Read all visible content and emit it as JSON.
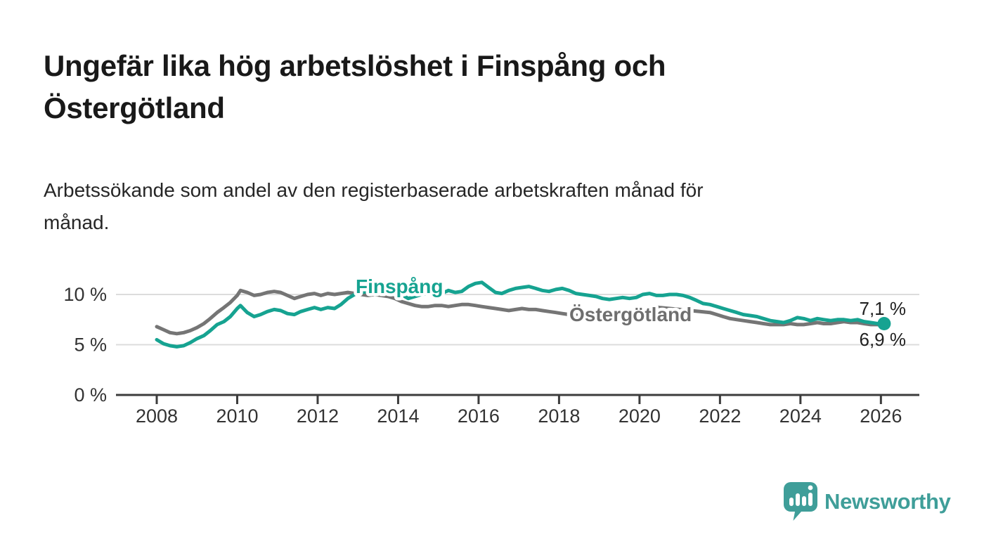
{
  "header": {
    "title": "Ungefär lika hög arbetslöshet i Finspång och Östergötland",
    "title_lines": [
      "Ungefär lika hög arbetslöshet i Finspång och",
      "Östergötland"
    ],
    "subtitle": "Arbetssökande som andel av den registerbaserade arbetskraften månad för månad.",
    "subtitle_lines": [
      "Arbetssökande som andel av den registerbaserade arbetskraften månad för",
      "månad."
    ]
  },
  "footer": {
    "brand": "Newsworthy",
    "brand_color": "#3f9e99"
  },
  "colors": {
    "finspang_line": "#16a391",
    "ostergotland_line": "#757575",
    "grid": "#dcdcdc",
    "axis": "#3c3c3c",
    "tick_text": "#333333",
    "end_label_text": "#1f1f1f"
  },
  "chart_data": {
    "type": "line",
    "title": "Ungefär lika hög arbetslöshet i Finspång och Östergötland",
    "xlabel": "",
    "ylabel": "",
    "x_range": [
      2007.0,
      2026.95
    ],
    "ylim": [
      0,
      13.5
    ],
    "grid": "horizontal",
    "legend_position": "inline-labels",
    "y_ticks": [
      {
        "value": 0,
        "label": "0 %"
      },
      {
        "value": 5,
        "label": "5 %"
      },
      {
        "value": 10,
        "label": "10 %"
      }
    ],
    "x_ticks": [
      {
        "year": 2008,
        "label": "2008"
      },
      {
        "year": 2010,
        "label": "2010"
      },
      {
        "year": 2012,
        "label": "2012"
      },
      {
        "year": 2014,
        "label": "2014"
      },
      {
        "year": 2016,
        "label": "2016"
      },
      {
        "year": 2018,
        "label": "2018"
      },
      {
        "year": 2020,
        "label": "2020"
      },
      {
        "year": 2022,
        "label": "2022"
      },
      {
        "year": 2024,
        "label": "2024"
      },
      {
        "year": 2026,
        "label": "2026"
      }
    ],
    "series": [
      {
        "name": "Finspång",
        "color": "#16a391",
        "end_dot": true,
        "last_value": 7.1,
        "points": [
          [
            2008.0,
            5.5
          ],
          [
            2008.17,
            5.1
          ],
          [
            2008.33,
            4.9
          ],
          [
            2008.5,
            4.8
          ],
          [
            2008.67,
            4.9
          ],
          [
            2008.83,
            5.2
          ],
          [
            2009.0,
            5.6
          ],
          [
            2009.17,
            5.9
          ],
          [
            2009.33,
            6.4
          ],
          [
            2009.5,
            7.0
          ],
          [
            2009.67,
            7.3
          ],
          [
            2009.83,
            7.8
          ],
          [
            2010.0,
            8.6
          ],
          [
            2010.08,
            8.9
          ],
          [
            2010.25,
            8.2
          ],
          [
            2010.42,
            7.8
          ],
          [
            2010.58,
            8.0
          ],
          [
            2010.75,
            8.3
          ],
          [
            2010.92,
            8.5
          ],
          [
            2011.08,
            8.4
          ],
          [
            2011.25,
            8.1
          ],
          [
            2011.42,
            8.0
          ],
          [
            2011.58,
            8.3
          ],
          [
            2011.75,
            8.5
          ],
          [
            2011.92,
            8.7
          ],
          [
            2012.08,
            8.5
          ],
          [
            2012.25,
            8.7
          ],
          [
            2012.42,
            8.6
          ],
          [
            2012.58,
            9.0
          ],
          [
            2012.75,
            9.6
          ],
          [
            2012.92,
            10.0
          ],
          [
            2013.08,
            10.2
          ],
          [
            2013.25,
            10.3
          ],
          [
            2013.42,
            10.1
          ],
          [
            2013.58,
            10.3
          ],
          [
            2013.75,
            10.5
          ],
          [
            2013.92,
            10.4
          ],
          [
            2014.08,
            10.0
          ],
          [
            2014.25,
            9.6
          ],
          [
            2014.42,
            9.8
          ],
          [
            2014.58,
            10.0
          ],
          [
            2014.75,
            10.1
          ],
          [
            2014.92,
            9.9
          ],
          [
            2015.08,
            10.1
          ],
          [
            2015.25,
            10.4
          ],
          [
            2015.42,
            10.2
          ],
          [
            2015.58,
            10.3
          ],
          [
            2015.75,
            10.8
          ],
          [
            2015.92,
            11.1
          ],
          [
            2016.08,
            11.2
          ],
          [
            2016.25,
            10.7
          ],
          [
            2016.42,
            10.2
          ],
          [
            2016.58,
            10.1
          ],
          [
            2016.75,
            10.4
          ],
          [
            2016.92,
            10.6
          ],
          [
            2017.08,
            10.7
          ],
          [
            2017.25,
            10.8
          ],
          [
            2017.42,
            10.6
          ],
          [
            2017.58,
            10.4
          ],
          [
            2017.75,
            10.3
          ],
          [
            2017.92,
            10.5
          ],
          [
            2018.08,
            10.6
          ],
          [
            2018.25,
            10.4
          ],
          [
            2018.42,
            10.1
          ],
          [
            2018.58,
            10.0
          ],
          [
            2018.75,
            9.9
          ],
          [
            2018.92,
            9.8
          ],
          [
            2019.08,
            9.6
          ],
          [
            2019.25,
            9.5
          ],
          [
            2019.42,
            9.6
          ],
          [
            2019.58,
            9.7
          ],
          [
            2019.75,
            9.6
          ],
          [
            2019.92,
            9.7
          ],
          [
            2020.08,
            10.0
          ],
          [
            2020.25,
            10.1
          ],
          [
            2020.42,
            9.9
          ],
          [
            2020.58,
            9.9
          ],
          [
            2020.75,
            10.0
          ],
          [
            2020.92,
            10.0
          ],
          [
            2021.08,
            9.9
          ],
          [
            2021.25,
            9.7
          ],
          [
            2021.42,
            9.4
          ],
          [
            2021.58,
            9.1
          ],
          [
            2021.75,
            9.0
          ],
          [
            2021.92,
            8.8
          ],
          [
            2022.08,
            8.6
          ],
          [
            2022.25,
            8.4
          ],
          [
            2022.42,
            8.2
          ],
          [
            2022.58,
            8.0
          ],
          [
            2022.75,
            7.9
          ],
          [
            2022.92,
            7.8
          ],
          [
            2023.08,
            7.6
          ],
          [
            2023.25,
            7.4
          ],
          [
            2023.42,
            7.3
          ],
          [
            2023.58,
            7.2
          ],
          [
            2023.75,
            7.4
          ],
          [
            2023.92,
            7.7
          ],
          [
            2024.08,
            7.6
          ],
          [
            2024.25,
            7.4
          ],
          [
            2024.42,
            7.6
          ],
          [
            2024.58,
            7.5
          ],
          [
            2024.75,
            7.4
          ],
          [
            2024.92,
            7.5
          ],
          [
            2025.08,
            7.5
          ],
          [
            2025.25,
            7.4
          ],
          [
            2025.42,
            7.5
          ],
          [
            2025.58,
            7.3
          ],
          [
            2025.75,
            7.2
          ],
          [
            2025.92,
            7.1
          ],
          [
            2026.08,
            7.1
          ]
        ]
      },
      {
        "name": "Östergötland",
        "color": "#757575",
        "end_dot": false,
        "last_value": 6.9,
        "points": [
          [
            2008.0,
            6.8
          ],
          [
            2008.17,
            6.5
          ],
          [
            2008.33,
            6.2
          ],
          [
            2008.5,
            6.1
          ],
          [
            2008.67,
            6.2
          ],
          [
            2008.83,
            6.4
          ],
          [
            2009.0,
            6.7
          ],
          [
            2009.17,
            7.1
          ],
          [
            2009.33,
            7.6
          ],
          [
            2009.5,
            8.2
          ],
          [
            2009.67,
            8.7
          ],
          [
            2009.83,
            9.2
          ],
          [
            2010.0,
            9.9
          ],
          [
            2010.08,
            10.4
          ],
          [
            2010.25,
            10.2
          ],
          [
            2010.42,
            9.9
          ],
          [
            2010.58,
            10.0
          ],
          [
            2010.75,
            10.2
          ],
          [
            2010.92,
            10.3
          ],
          [
            2011.08,
            10.2
          ],
          [
            2011.25,
            9.9
          ],
          [
            2011.42,
            9.6
          ],
          [
            2011.58,
            9.8
          ],
          [
            2011.75,
            10.0
          ],
          [
            2011.92,
            10.1
          ],
          [
            2012.08,
            9.9
          ],
          [
            2012.25,
            10.1
          ],
          [
            2012.42,
            10.0
          ],
          [
            2012.58,
            10.1
          ],
          [
            2012.75,
            10.2
          ],
          [
            2012.92,
            10.1
          ],
          [
            2013.08,
            10.0
          ],
          [
            2013.25,
            9.9
          ],
          [
            2013.42,
            10.0
          ],
          [
            2013.58,
            9.9
          ],
          [
            2013.75,
            9.8
          ],
          [
            2013.92,
            9.6
          ],
          [
            2014.08,
            9.3
          ],
          [
            2014.25,
            9.1
          ],
          [
            2014.42,
            8.9
          ],
          [
            2014.58,
            8.8
          ],
          [
            2014.75,
            8.8
          ],
          [
            2014.92,
            8.9
          ],
          [
            2015.08,
            8.9
          ],
          [
            2015.25,
            8.8
          ],
          [
            2015.42,
            8.9
          ],
          [
            2015.58,
            9.0
          ],
          [
            2015.75,
            9.0
          ],
          [
            2015.92,
            8.9
          ],
          [
            2016.08,
            8.8
          ],
          [
            2016.25,
            8.7
          ],
          [
            2016.42,
            8.6
          ],
          [
            2016.58,
            8.5
          ],
          [
            2016.75,
            8.4
          ],
          [
            2016.92,
            8.5
          ],
          [
            2017.08,
            8.6
          ],
          [
            2017.25,
            8.5
          ],
          [
            2017.42,
            8.5
          ],
          [
            2017.58,
            8.4
          ],
          [
            2017.75,
            8.3
          ],
          [
            2017.92,
            8.2
          ],
          [
            2018.08,
            8.1
          ],
          [
            2018.25,
            8.0
          ],
          [
            2018.5,
            7.9
          ],
          [
            2018.75,
            7.8
          ],
          [
            2019.0,
            7.7
          ],
          [
            2019.25,
            7.6
          ],
          [
            2019.5,
            7.6
          ],
          [
            2019.75,
            7.7
          ],
          [
            2020.0,
            8.0
          ],
          [
            2020.17,
            8.6
          ],
          [
            2020.33,
            8.8
          ],
          [
            2020.5,
            8.7
          ],
          [
            2020.75,
            8.6
          ],
          [
            2021.0,
            8.5
          ],
          [
            2021.25,
            8.4
          ],
          [
            2021.5,
            8.3
          ],
          [
            2021.75,
            8.2
          ],
          [
            2021.92,
            8.0
          ],
          [
            2022.08,
            7.8
          ],
          [
            2022.25,
            7.6
          ],
          [
            2022.42,
            7.5
          ],
          [
            2022.58,
            7.4
          ],
          [
            2022.75,
            7.3
          ],
          [
            2022.92,
            7.2
          ],
          [
            2023.08,
            7.1
          ],
          [
            2023.25,
            7.0
          ],
          [
            2023.42,
            7.0
          ],
          [
            2023.58,
            7.0
          ],
          [
            2023.75,
            7.1
          ],
          [
            2023.92,
            7.0
          ],
          [
            2024.08,
            7.0
          ],
          [
            2024.25,
            7.1
          ],
          [
            2024.42,
            7.2
          ],
          [
            2024.58,
            7.1
          ],
          [
            2024.75,
            7.1
          ],
          [
            2024.92,
            7.2
          ],
          [
            2025.08,
            7.3
          ],
          [
            2025.25,
            7.2
          ],
          [
            2025.42,
            7.2
          ],
          [
            2025.58,
            7.1
          ],
          [
            2025.75,
            7.0
          ],
          [
            2025.92,
            7.0
          ],
          [
            2026.08,
            6.9
          ]
        ]
      }
    ],
    "end_labels": [
      {
        "series": "Finspång",
        "value": 7.1,
        "text": "7,1 %"
      },
      {
        "series": "Östergötland",
        "value": 6.9,
        "text": "6,9 %"
      }
    ]
  }
}
